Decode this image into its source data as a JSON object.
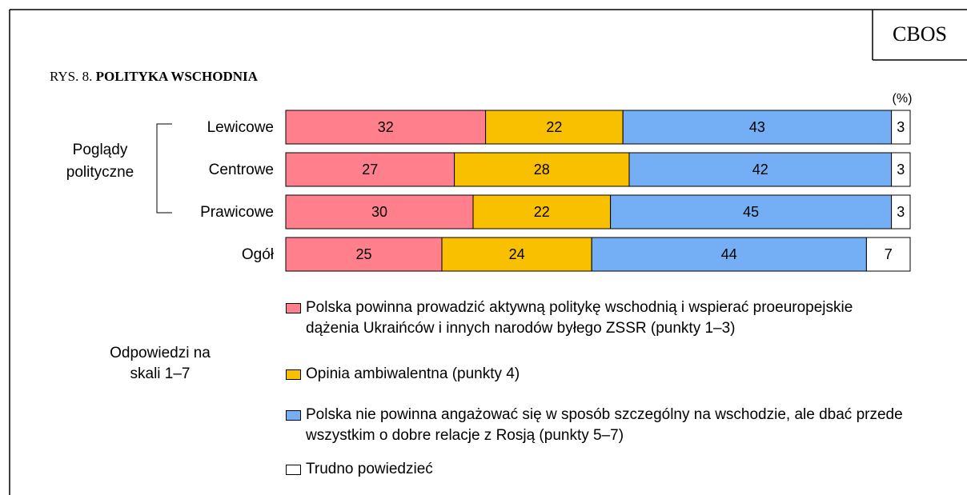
{
  "brand": "CBOS",
  "chart_data": {
    "type": "stacked-bar-horizontal",
    "figure_label": "RYS. 8.",
    "title": "POLITYKA WSCHODNIA",
    "unit_label": "(%)",
    "group_label": "Poglądy polityczne",
    "legend_title": "Odpowiedzi na skali 1–7",
    "categories": [
      "Lewicowe",
      "Centrowe",
      "Prawicowe",
      "Ogół"
    ],
    "series": [
      {
        "name": "Polska powinna prowadzić aktywną politykę wschodnią i wspierać proeuropejskie dążenia Ukraińców i innych narodów byłego ZSSR (punkty 1–3)",
        "color": "#ff7f8c",
        "values": [
          32,
          27,
          30,
          25
        ]
      },
      {
        "name": "Opinia ambiwalentna (punkty 4)",
        "color": "#f9c000",
        "values": [
          22,
          28,
          22,
          24
        ]
      },
      {
        "name": "Polska nie powinna angażować się w sposób szczególny na wschodzie, ale dbać przede wszystkim o dobre relacje z Rosją (punkty 5–7)",
        "color": "#74aef4",
        "values": [
          43,
          42,
          45,
          44
        ]
      },
      {
        "name": "Trudno powiedzieć",
        "color": "#ffffff",
        "values": [
          3,
          3,
          3,
          7
        ]
      }
    ]
  }
}
